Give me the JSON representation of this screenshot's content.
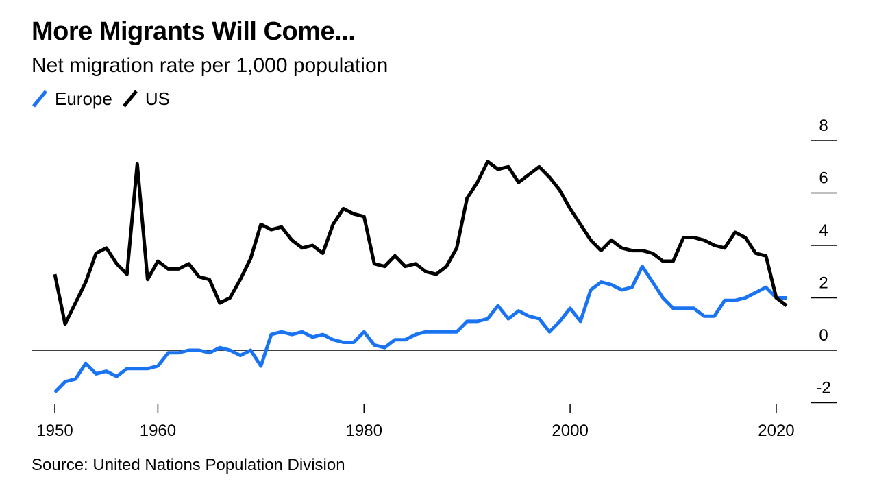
{
  "title": "More Migrants Will Come...",
  "subtitle": "Net migration rate per 1,000 population",
  "legend": [
    {
      "name": "Europe",
      "color": "#1a74f2"
    },
    {
      "name": "US",
      "color": "#000000"
    }
  ],
  "source": "Source: United Nations Population Division",
  "chart_data": {
    "type": "line",
    "title": "More Migrants Will Come...",
    "subtitle": "Net migration rate per 1,000 population",
    "xlabel": "",
    "ylabel": "",
    "xlim": [
      1950,
      2021
    ],
    "ylim": [
      -2,
      8
    ],
    "x_ticks": [
      1950,
      1960,
      1980,
      2000,
      2020
    ],
    "x_tick_labels": [
      "1950",
      "1960",
      "1980",
      "2000",
      "2020"
    ],
    "y_ticks": [
      -2,
      0,
      2,
      4,
      6,
      8
    ],
    "y_tick_labels": [
      "-2",
      "0",
      "2",
      "4",
      "6",
      "8"
    ],
    "y_axis_side": "right",
    "zero_line": true,
    "grid": false,
    "legend_position": "top-left",
    "x": [
      1950,
      1951,
      1952,
      1953,
      1954,
      1955,
      1956,
      1957,
      1958,
      1959,
      1960,
      1961,
      1962,
      1963,
      1964,
      1965,
      1966,
      1967,
      1968,
      1969,
      1970,
      1971,
      1972,
      1973,
      1974,
      1975,
      1976,
      1977,
      1978,
      1979,
      1980,
      1981,
      1982,
      1983,
      1984,
      1985,
      1986,
      1987,
      1988,
      1989,
      1990,
      1991,
      1992,
      1993,
      1994,
      1995,
      1996,
      1997,
      1998,
      1999,
      2000,
      2001,
      2002,
      2003,
      2004,
      2005,
      2006,
      2007,
      2008,
      2009,
      2010,
      2011,
      2012,
      2013,
      2014,
      2015,
      2016,
      2017,
      2018,
      2019,
      2020,
      2021
    ],
    "series": [
      {
        "name": "Europe",
        "color": "#1a74f2",
        "values": [
          -1.6,
          -1.2,
          -1.1,
          -0.5,
          -0.9,
          -0.8,
          -1.0,
          -0.7,
          -0.7,
          -0.7,
          -0.6,
          -0.1,
          -0.1,
          0.0,
          0.0,
          -0.1,
          0.1,
          0.0,
          -0.2,
          0.0,
          -0.6,
          0.6,
          0.7,
          0.6,
          0.7,
          0.5,
          0.6,
          0.4,
          0.3,
          0.3,
          0.7,
          0.2,
          0.1,
          0.4,
          0.4,
          0.6,
          0.7,
          0.7,
          0.7,
          0.7,
          1.1,
          1.1,
          1.2,
          1.7,
          1.2,
          1.5,
          1.3,
          1.2,
          0.7,
          1.1,
          1.6,
          1.1,
          2.3,
          2.6,
          2.5,
          2.3,
          2.4,
          3.2,
          2.6,
          2.0,
          1.6,
          1.6,
          1.6,
          1.3,
          1.3,
          1.9,
          1.9,
          2.0,
          2.2,
          2.4,
          2.0,
          2.0
        ]
      },
      {
        "name": "US",
        "color": "#000000",
        "values": [
          2.9,
          1.0,
          1.8,
          2.6,
          3.7,
          3.9,
          3.3,
          2.9,
          7.1,
          2.7,
          3.4,
          3.1,
          3.1,
          3.3,
          2.8,
          2.7,
          1.8,
          2.0,
          2.7,
          3.5,
          4.8,
          4.6,
          4.7,
          4.2,
          3.9,
          4.0,
          3.7,
          4.8,
          5.4,
          5.2,
          5.1,
          3.3,
          3.2,
          3.6,
          3.2,
          3.3,
          3.0,
          2.9,
          3.2,
          3.9,
          5.8,
          6.4,
          7.2,
          6.9,
          7.0,
          6.4,
          6.7,
          7.0,
          6.6,
          6.1,
          5.4,
          4.8,
          4.2,
          3.8,
          4.2,
          3.9,
          3.8,
          3.8,
          3.7,
          3.4,
          3.4,
          4.3,
          4.3,
          4.2,
          4.0,
          3.9,
          4.5,
          4.3,
          3.7,
          3.6,
          2.0,
          1.7
        ]
      }
    ]
  }
}
